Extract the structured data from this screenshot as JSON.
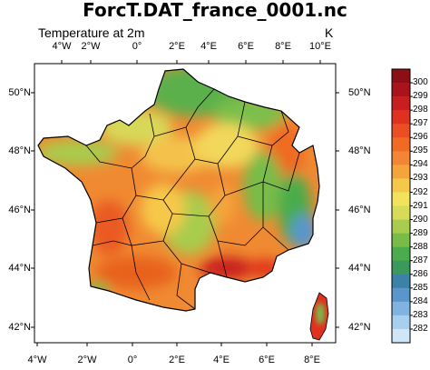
{
  "title": "ForcT.DAT_france_0001.nc",
  "subtitle": "Temperature at 2m",
  "units": "K",
  "lon_ticks_top": [
    "4°W",
    "2°W",
    "0°",
    "2°E",
    "4°E",
    "6°E",
    "8°E",
    "10°E"
  ],
  "lon_ticks_bottom": [
    "4°W",
    "2°W",
    "0°",
    "2°E",
    "4°E",
    "6°E",
    "8°E"
  ],
  "lat_ticks_left": [
    "50°N",
    "48°N",
    "46°N",
    "44°N",
    "42°N"
  ],
  "lat_ticks_right": [
    "50°N",
    "48°N",
    "46°N",
    "44°N",
    "42°N"
  ],
  "colorbar": {
    "labels": [
      "300",
      "299",
      "298",
      "297",
      "296",
      "295",
      "294",
      "293",
      "292",
      "291",
      "290",
      "289",
      "288",
      "287",
      "286",
      "285",
      "284",
      "283",
      "282"
    ],
    "colors": [
      "#8b0f14",
      "#a8141a",
      "#c81e1e",
      "#e0301e",
      "#ea4e22",
      "#f06a24",
      "#f28634",
      "#f4a43a",
      "#f6c84a",
      "#f2e25c",
      "#d6dc58",
      "#a8cc4e",
      "#78bc48",
      "#4aac4c",
      "#3a9a5c",
      "#3a82a8",
      "#5896cc",
      "#80b4e0",
      "#a8d0ee",
      "#cfe6f8"
    ]
  },
  "colors": {
    "sea": "#ffffff",
    "border": "#000000"
  }
}
